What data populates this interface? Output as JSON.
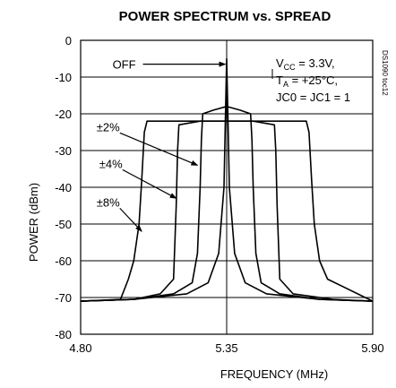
{
  "chart_data": {
    "type": "line",
    "title": "POWER SPECTRUM vs. SPREAD",
    "xlabel": "FREQUENCY (MHz)",
    "ylabel": "POWER (dBm)",
    "xlim": [
      4.8,
      5.9
    ],
    "ylim": [
      -80,
      0
    ],
    "x_ticks": [
      "4.80",
      "5.35",
      "5.90"
    ],
    "y_ticks": [
      "0",
      "-10",
      "-20",
      "-30",
      "-40",
      "-50",
      "-60",
      "-70",
      "-80"
    ],
    "grid": true,
    "conditions": {
      "vcc": {
        "main": "V",
        "sub": "CC",
        "rest": " = 3.3V,"
      },
      "ta": {
        "main": "T",
        "sub": "A",
        "rest": " = +25°C,"
      },
      "jc": "JC0 = JC1 = 1"
    },
    "figure_code": "DS1090 toc12",
    "series": [
      {
        "name": "OFF",
        "x": [
          4.8,
          5.0,
          5.2,
          5.28,
          5.32,
          5.34,
          5.345,
          5.35,
          5.355,
          5.36,
          5.38,
          5.42,
          5.5,
          5.7,
          5.9
        ],
        "y": [
          -71,
          -70.5,
          -69,
          -66,
          -58,
          -40,
          -22,
          -5,
          -22,
          -40,
          -58,
          -66,
          -69,
          -70.5,
          -71
        ]
      },
      {
        "name": "±2%",
        "x": [
          4.8,
          5.0,
          5.15,
          5.22,
          5.24,
          5.25,
          5.255,
          5.26,
          5.3,
          5.35,
          5.4,
          5.44,
          5.445,
          5.45,
          5.46,
          5.48,
          5.55,
          5.7,
          5.9
        ],
        "y": [
          -71,
          -70.5,
          -69,
          -66,
          -58,
          -40,
          -27,
          -20,
          -19,
          -18,
          -19,
          -20,
          -27,
          -40,
          -58,
          -66,
          -69,
          -70.5,
          -71
        ]
      },
      {
        "name": "±4%",
        "x": [
          4.8,
          5.0,
          5.1,
          5.15,
          5.16,
          5.165,
          5.17,
          5.25,
          5.35,
          5.45,
          5.53,
          5.535,
          5.54,
          5.55,
          5.6,
          5.75,
          5.9
        ],
        "y": [
          -71,
          -70.5,
          -69,
          -65,
          -45,
          -30,
          -23,
          -22,
          -22,
          -22,
          -23,
          -30,
          -45,
          -65,
          -69,
          -70.5,
          -71
        ]
      },
      {
        "name": "±8%",
        "x": [
          4.8,
          4.95,
          4.98,
          5.0,
          5.02,
          5.03,
          5.04,
          5.05,
          5.15,
          5.35,
          5.55,
          5.65,
          5.66,
          5.67,
          5.68,
          5.7,
          5.73,
          5.9
        ],
        "y": [
          -71,
          -70.5,
          -65,
          -60,
          -50,
          -38,
          -25,
          -22,
          -22,
          -22,
          -22,
          -22,
          -25,
          -38,
          -50,
          -60,
          -65,
          -71
        ]
      }
    ],
    "annotations": [
      {
        "text": "OFF",
        "x": 4.92,
        "y": -6.5
      },
      {
        "text": "±2%",
        "x": 4.86,
        "y": -23.5
      },
      {
        "text": "±4%",
        "x": 4.87,
        "y": -33.5
      },
      {
        "text": "±8%",
        "x": 4.86,
        "y": -44
      }
    ]
  }
}
